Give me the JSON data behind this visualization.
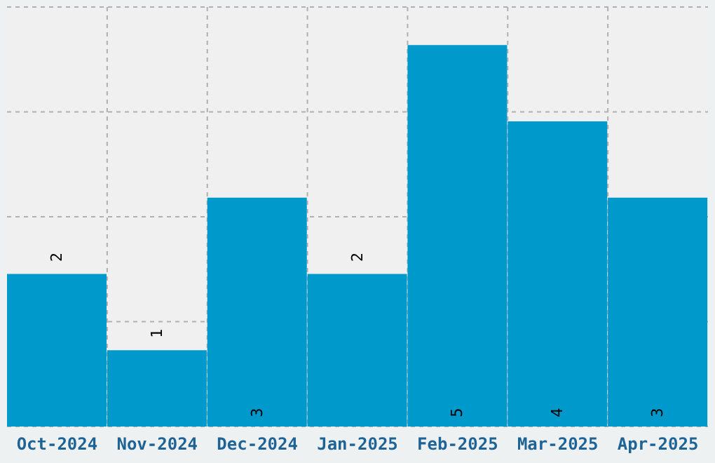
{
  "chart_data": {
    "type": "bar",
    "categories": [
      "Oct-2024",
      "Nov-2024",
      "Dec-2024",
      "Jan-2025",
      "Feb-2025",
      "Mar-2025",
      "Apr-2025"
    ],
    "values": [
      2,
      1,
      3,
      2,
      5,
      4,
      3
    ],
    "color": "#0099cc",
    "ylim": [
      0,
      5.5
    ],
    "yticks": [
      {
        "value": 0,
        "label": null
      },
      {
        "value": 1.375,
        "label": null
      },
      {
        "value": 2.75,
        "label": null
      },
      {
        "value": 4.125,
        "label": null
      },
      {
        "value": 5.5,
        "label": null
      }
    ],
    "tick_labels": "x",
    "grid": true,
    "data_labels": true
  }
}
